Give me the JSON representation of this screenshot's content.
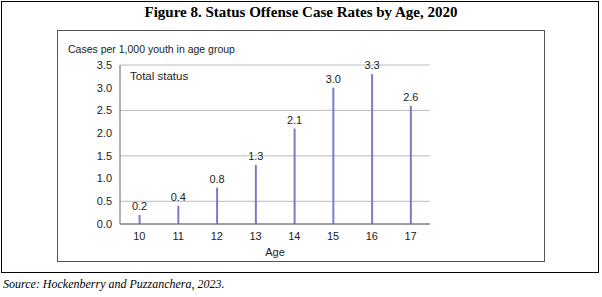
{
  "chart_data": {
    "type": "bar",
    "title": "Figure 8. Status Offense Case Rates by Age, 2020",
    "y_label": "Cases per 1,000 youth in age group",
    "x_label": "Age",
    "annotations": [
      "Total status"
    ],
    "source": "Source: Hockenberry and Puzzanchera, 2023.",
    "categories": [
      "10",
      "11",
      "12",
      "13",
      "14",
      "15",
      "16",
      "17"
    ],
    "values": [
      0.2,
      0.4,
      0.8,
      1.3,
      2.1,
      3.0,
      3.3,
      2.6
    ],
    "value_labels": [
      "0.2",
      "0.4",
      "0.8",
      "1.3",
      "2.1",
      "3.0",
      "3.3",
      "2.6"
    ],
    "data_labels": true,
    "color": "#7b7bc8",
    "ylim": [
      0,
      3.5
    ],
    "yticks": [
      {
        "value": 0,
        "label": "0.0"
      },
      0.5,
      {
        "value": 1,
        "label": "1.0"
      },
      1.5,
      {
        "value": 2,
        "label": "2.0"
      },
      2.5,
      {
        "value": 3,
        "label": "3.0"
      },
      3.5
    ],
    "grid": true
  }
}
